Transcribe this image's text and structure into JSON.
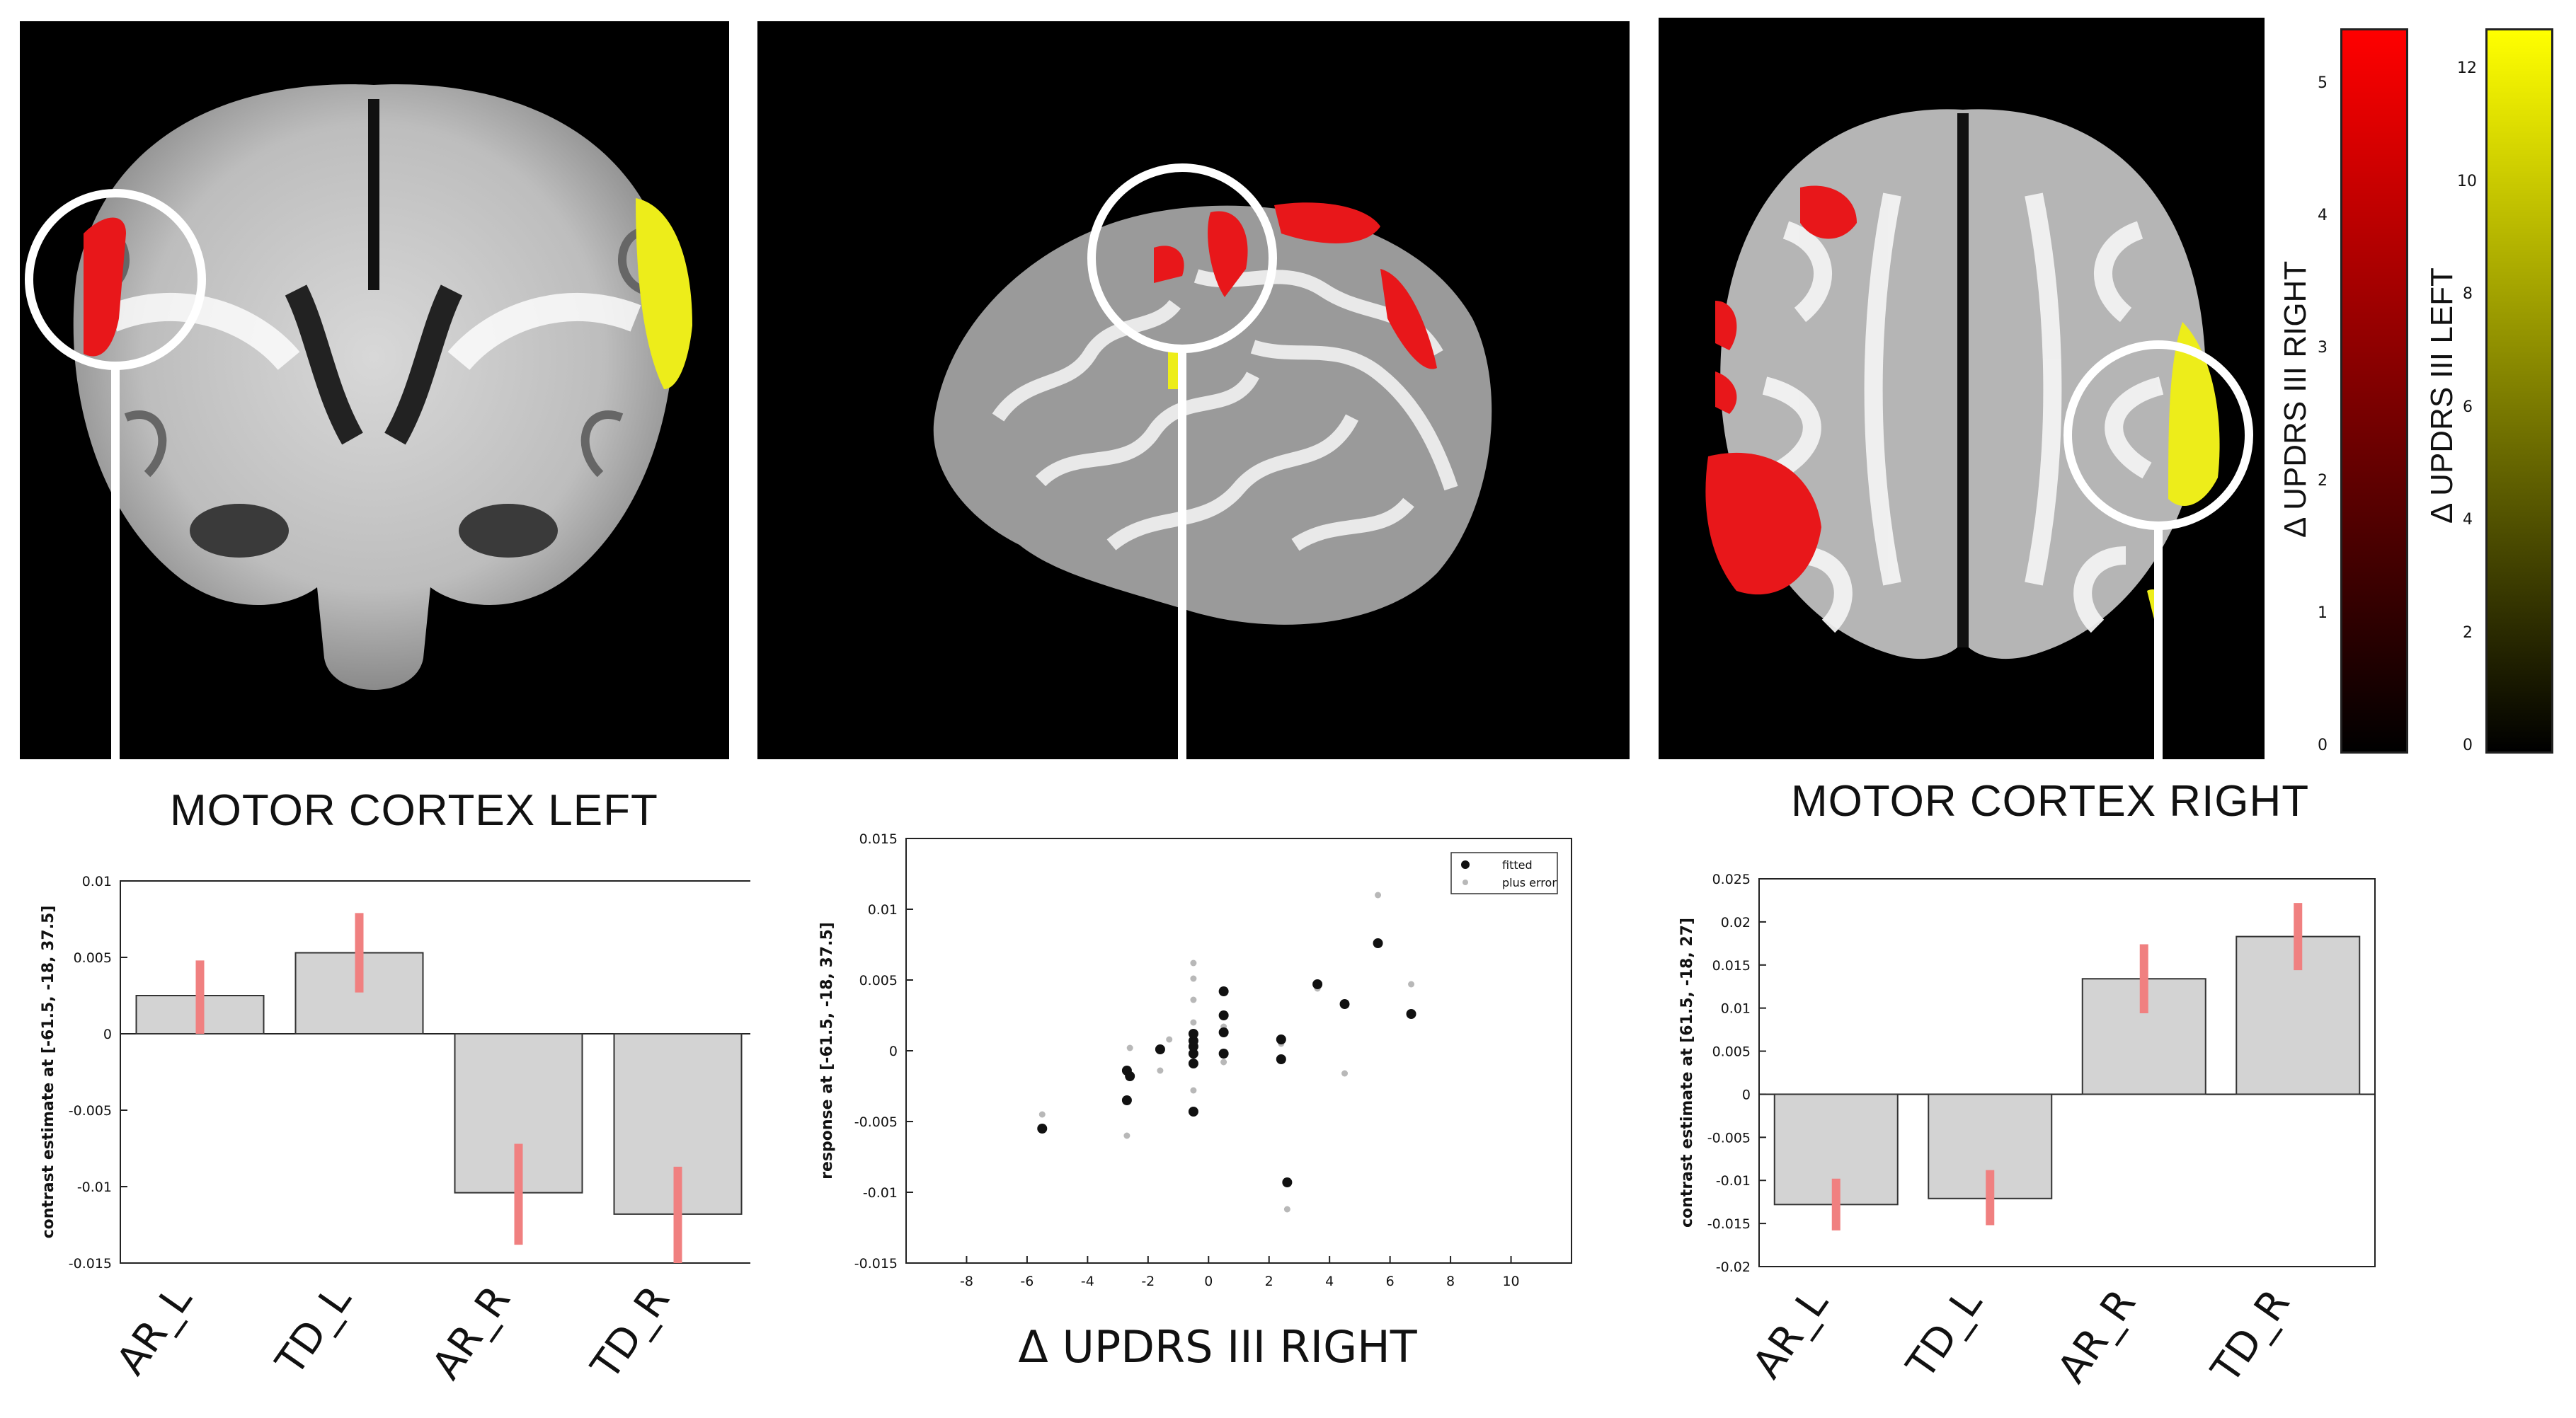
{
  "captions": {
    "left": "MOTOR CORTEX LEFT",
    "right": "MOTOR CORTEX RIGHT"
  },
  "colorbars": [
    {
      "label": "Δ UPDRS III  RIGHT",
      "ticks": [
        "5",
        "4",
        "3",
        "2",
        "1",
        "0"
      ],
      "gradient": [
        "#ff0000",
        "#000000"
      ]
    },
    {
      "label": "Δ UPDRS III  LEFT",
      "ticks": [
        "12",
        "10",
        "8",
        "6",
        "4",
        "2",
        "0"
      ],
      "gradient": [
        "#ffff00",
        "#000000"
      ]
    }
  ],
  "colors": {
    "bar_fill": "#d3d3d3",
    "error_bar": "#f08080",
    "overlay_red": "#e8171a",
    "overlay_yellow": "#eded1a"
  },
  "chart_data": [
    {
      "type": "bar",
      "categories": [
        "AR_L",
        "TD_L",
        "AR_R",
        "TD_R"
      ],
      "values": [
        0.0025,
        0.0053,
        -0.0104,
        -0.0118
      ],
      "errors": [
        [
          0.0,
          0.0048
        ],
        [
          0.0027,
          0.0079
        ],
        [
          -0.0138,
          -0.0072
        ],
        [
          -0.015,
          -0.0087
        ]
      ],
      "ylabel": "contrast estimate at [-61.5, -18, 37.5]",
      "ylim": [
        -0.015,
        0.01
      ],
      "yticks": [
        "0.01",
        "0.005",
        "0",
        "-0.005",
        "-0.01",
        "-0.015"
      ]
    },
    {
      "type": "scatter",
      "xlabel": "Δ UPDRS III    RIGHT",
      "ylabel": "response at [-61.5, -18, 37.5]",
      "xlim": [
        -10,
        12
      ],
      "ylim": [
        -0.015,
        0.015
      ],
      "xticks": [
        "-8",
        "-6",
        "-4",
        "-2",
        "0",
        "2",
        "4",
        "6",
        "8",
        "10"
      ],
      "yticks": [
        "0.015",
        "0.01",
        "0.005",
        "0",
        "-0.005",
        "-0.01",
        "-0.015"
      ],
      "legend": [
        "fitted",
        "plus error"
      ],
      "series": [
        {
          "name": "fitted",
          "points": [
            [
              -5.5,
              -0.0055
            ],
            [
              -2.7,
              -0.0035
            ],
            [
              -2.7,
              -0.0014
            ],
            [
              -2.6,
              -0.0018
            ],
            [
              -1.6,
              0.0001
            ],
            [
              -0.5,
              0.0003
            ],
            [
              -0.5,
              -0.0002
            ],
            [
              -0.5,
              0.0007
            ],
            [
              -0.5,
              0.0012
            ],
            [
              -0.5,
              -0.0009
            ],
            [
              -0.5,
              -0.0043
            ],
            [
              0.5,
              0.0042
            ],
            [
              0.5,
              0.0025
            ],
            [
              0.5,
              0.0013
            ],
            [
              0.5,
              -0.0002
            ],
            [
              2.4,
              0.0008
            ],
            [
              2.4,
              -0.0006
            ],
            [
              2.6,
              -0.0093
            ],
            [
              3.6,
              0.0047
            ],
            [
              4.5,
              0.0033
            ],
            [
              5.6,
              0.0076
            ],
            [
              6.7,
              0.0026
            ]
          ]
        },
        {
          "name": "plus error",
          "points": [
            [
              -5.5,
              -0.0045
            ],
            [
              -2.7,
              -0.006
            ],
            [
              -2.6,
              0.0002
            ],
            [
              -1.6,
              -0.0014
            ],
            [
              -0.5,
              0.0062
            ],
            [
              -0.5,
              0.0051
            ],
            [
              -0.5,
              0.0036
            ],
            [
              -0.5,
              0.002
            ],
            [
              -0.5,
              -0.0028
            ],
            [
              0.5,
              -0.0008
            ],
            [
              0.5,
              0.0017
            ],
            [
              2.4,
              0.0005
            ],
            [
              2.6,
              -0.0112
            ],
            [
              3.6,
              0.0044
            ],
            [
              4.5,
              -0.0016
            ],
            [
              5.6,
              0.011
            ],
            [
              6.7,
              0.0047
            ],
            [
              -1.3,
              0.0008
            ]
          ]
        }
      ]
    },
    {
      "type": "bar",
      "categories": [
        "AR_L",
        "TD_L",
        "AR_R",
        "TD_R"
      ],
      "values": [
        -0.0128,
        -0.0121,
        0.0134,
        0.0183
      ],
      "errors": [
        [
          -0.0158,
          -0.0098
        ],
        [
          -0.0152,
          -0.0088
        ],
        [
          0.0094,
          0.0174
        ],
        [
          0.0144,
          0.0222
        ]
      ],
      "ylabel": "contrast estimate at [61.5, -18, 27]",
      "ylim": [
        -0.02,
        0.025
      ],
      "yticks": [
        "0.025",
        "0.02",
        "0.015",
        "0.01",
        "0.005",
        "0",
        "-0.005",
        "-0.01",
        "-0.015",
        "-0.02"
      ]
    }
  ]
}
